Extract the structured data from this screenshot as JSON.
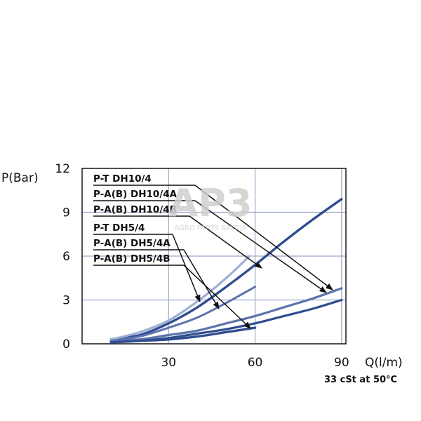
{
  "chart_data": {
    "type": "line",
    "ylabel": "P(Bar)",
    "xlabel": "Q(l/m)",
    "note": "33 cSt at 50°C",
    "xlim": [
      0,
      90
    ],
    "ylim": [
      0,
      12
    ],
    "xticks": [
      30,
      60,
      90
    ],
    "yticks": [
      0,
      3,
      6,
      9,
      12
    ],
    "grid": true,
    "legend_position": "top-left",
    "series": [
      {
        "name": "P-T DH10/4",
        "x": [
          10,
          20,
          30,
          40,
          50,
          60,
          70,
          80,
          90
        ],
        "y": [
          0.3,
          0.6,
          1.4,
          2.5,
          3.9,
          5.4,
          7.0,
          8.5,
          9.9
        ]
      },
      {
        "name": "P-A(B) DH10/4A",
        "x": [
          10,
          20,
          30,
          40,
          50,
          60,
          70,
          80,
          90
        ],
        "y": [
          0.2,
          0.3,
          0.6,
          0.9,
          1.4,
          1.9,
          2.5,
          3.1,
          3.8
        ]
      },
      {
        "name": "P-A(B) DH10/4B",
        "x": [
          10,
          20,
          30,
          40,
          50,
          60,
          70,
          80,
          90
        ],
        "y": [
          0.1,
          0.2,
          0.4,
          0.7,
          1.0,
          1.4,
          1.9,
          2.4,
          3.0
        ]
      },
      {
        "name": "P-T DH5/4",
        "x": [
          10,
          20,
          30,
          40,
          50,
          58
        ],
        "y": [
          0.3,
          0.8,
          1.6,
          2.9,
          4.5,
          6.0
        ]
      },
      {
        "name": "P-A(B) DH5/4A",
        "x": [
          10,
          20,
          30,
          40,
          50,
          60
        ],
        "y": [
          0.2,
          0.5,
          1.1,
          1.8,
          2.8,
          3.9
        ]
      },
      {
        "name": "P-A(B) DH5/4B",
        "x": [
          10,
          20,
          30,
          40,
          50,
          60
        ],
        "y": [
          0.1,
          0.2,
          0.3,
          0.5,
          0.8,
          1.1
        ]
      }
    ]
  },
  "watermark": {
    "logo": "AP3",
    "text": "AGRO PARTS BALTIJA"
  },
  "colors": {
    "dark_blue": "#2f4d8f",
    "mid_blue": "#5b74ad",
    "light_blue": "#9fb0d4",
    "grid": "#9aa7c7",
    "axis": "#1a1a1a"
  }
}
